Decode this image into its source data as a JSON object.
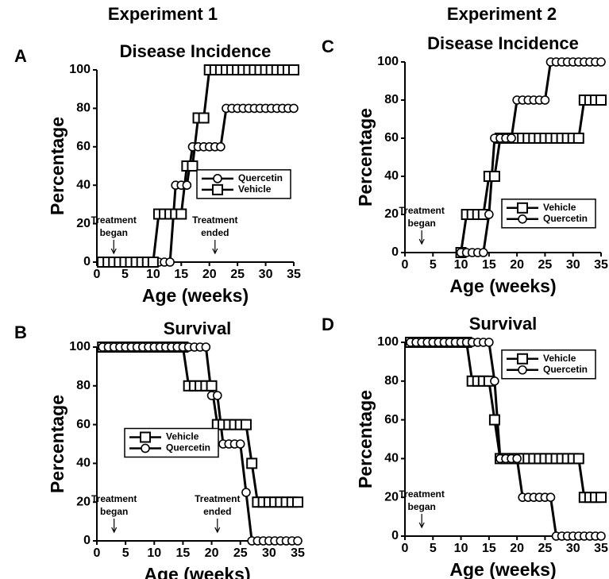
{
  "columns": [
    "Experiment 1",
    "Experiment 2"
  ],
  "chart_data": [
    {
      "type": "line",
      "panel": "A",
      "title": "Disease Incidence",
      "x_label": "Age (weeks)",
      "y_label": "Percentage",
      "x": [
        1,
        2,
        3,
        4,
        5,
        6,
        7,
        8,
        9,
        10,
        11,
        12,
        13,
        14,
        15,
        16,
        17,
        18,
        19,
        20,
        21,
        22,
        23,
        24,
        25,
        26,
        27,
        28,
        29,
        30,
        31,
        32,
        33,
        34,
        35
      ],
      "series": [
        {
          "name": "Quercetin",
          "marker": "circle",
          "color": "#000000",
          "values": [
            0,
            0,
            0,
            0,
            0,
            0,
            0,
            0,
            0,
            0,
            0,
            0,
            0,
            40,
            40,
            40,
            60,
            60,
            60,
            60,
            60,
            60,
            80,
            80,
            80,
            80,
            80,
            80,
            80,
            80,
            80,
            80,
            80,
            80,
            80
          ]
        },
        {
          "name": "Vehicle",
          "marker": "square",
          "color": "#000000",
          "values": [
            0,
            0,
            0,
            0,
            0,
            0,
            0,
            0,
            0,
            0,
            25,
            25,
            25,
            25,
            25,
            50,
            50,
            75,
            75,
            100,
            100,
            100,
            100,
            100,
            100,
            100,
            100,
            100,
            100,
            100,
            100,
            100,
            100,
            100,
            100
          ]
        }
      ],
      "xlim": [
        0,
        35
      ],
      "xticks": [
        0,
        5,
        10,
        15,
        20,
        25,
        30,
        35
      ],
      "ylim": [
        0,
        100
      ],
      "yticks": [
        0,
        20,
        40,
        60,
        80,
        100
      ],
      "legend": "center right",
      "annotations": [
        {
          "lines": [
            "Treatment",
            "began"
          ],
          "x": 3
        },
        {
          "lines": [
            "Treatment",
            "ended"
          ],
          "x": 21
        }
      ]
    },
    {
      "type": "line",
      "panel": "B",
      "title": "Survival",
      "x_label": "Age (weeks)",
      "y_label": "Percentage",
      "x": [
        1,
        2,
        3,
        4,
        5,
        6,
        7,
        8,
        9,
        10,
        11,
        12,
        13,
        14,
        15,
        16,
        17,
        18,
        19,
        20,
        21,
        22,
        23,
        24,
        25,
        26,
        27,
        28,
        29,
        30,
        31,
        32,
        33,
        34,
        35
      ],
      "series": [
        {
          "name": "Vehicle",
          "marker": "square",
          "color": "#000000",
          "values": [
            100,
            100,
            100,
            100,
            100,
            100,
            100,
            100,
            100,
            100,
            100,
            100,
            100,
            100,
            100,
            80,
            80,
            80,
            80,
            80,
            60,
            60,
            60,
            60,
            60,
            60,
            40,
            20,
            20,
            20,
            20,
            20,
            20,
            20,
            20
          ]
        },
        {
          "name": "Quercetin",
          "marker": "circle",
          "color": "#000000",
          "values": [
            100,
            100,
            100,
            100,
            100,
            100,
            100,
            100,
            100,
            100,
            100,
            100,
            100,
            100,
            100,
            100,
            100,
            100,
            100,
            75,
            75,
            50,
            50,
            50,
            50,
            25,
            0,
            0,
            0,
            0,
            0,
            0,
            0,
            0,
            0
          ]
        }
      ],
      "xlim": [
        0,
        35
      ],
      "xticks": [
        0,
        5,
        10,
        15,
        20,
        25,
        30,
        35
      ],
      "ylim": [
        0,
        100
      ],
      "yticks": [
        0,
        20,
        40,
        60,
        80,
        100
      ],
      "legend": "center left",
      "annotations": [
        {
          "lines": [
            "Treatment",
            "began"
          ],
          "x": 3
        },
        {
          "lines": [
            "Treatment",
            "ended"
          ],
          "x": 21
        }
      ]
    },
    {
      "type": "line",
      "panel": "C",
      "title": "Disease Incidence",
      "x_label": "Age (weeks)",
      "y_label": "Percentage",
      "x": [
        10,
        11,
        12,
        13,
        14,
        15,
        16,
        17,
        18,
        19,
        20,
        21,
        22,
        23,
        24,
        25,
        26,
        27,
        28,
        29,
        30,
        31,
        32,
        33,
        34,
        35
      ],
      "series": [
        {
          "name": "Vehicle",
          "marker": "square",
          "color": "#000000",
          "values": [
            0,
            20,
            20,
            20,
            20,
            40,
            40,
            60,
            60,
            60,
            60,
            60,
            60,
            60,
            60,
            60,
            60,
            60,
            60,
            60,
            60,
            60,
            80,
            80,
            80,
            80
          ]
        },
        {
          "name": "Quercetin",
          "marker": "circle",
          "color": "#000000",
          "values": [
            0,
            0,
            0,
            0,
            0,
            20,
            60,
            60,
            60,
            60,
            80,
            80,
            80,
            80,
            80,
            80,
            100,
            100,
            100,
            100,
            100,
            100,
            100,
            100,
            100,
            100
          ]
        }
      ],
      "xlim": [
        0,
        35
      ],
      "xticks": [
        0,
        5,
        10,
        15,
        20,
        25,
        30,
        35
      ],
      "ylim": [
        0,
        100
      ],
      "yticks": [
        0,
        20,
        40,
        60,
        80,
        100
      ],
      "legend": "lower right",
      "annotations": [
        {
          "lines": [
            "Treatment",
            "began"
          ],
          "x": 3
        }
      ]
    },
    {
      "type": "line",
      "panel": "D",
      "title": "Survival",
      "x_label": "Age (weeks)",
      "y_label": "Percentage",
      "x": [
        1,
        2,
        3,
        4,
        5,
        6,
        7,
        8,
        9,
        10,
        11,
        12,
        13,
        14,
        15,
        16,
        17,
        18,
        19,
        20,
        21,
        22,
        23,
        24,
        25,
        26,
        27,
        28,
        29,
        30,
        31,
        32,
        33,
        34,
        35
      ],
      "series": [
        {
          "name": "Vehicle",
          "marker": "square",
          "color": "#000000",
          "values": [
            100,
            100,
            100,
            100,
            100,
            100,
            100,
            100,
            100,
            100,
            100,
            80,
            80,
            80,
            80,
            60,
            40,
            40,
            40,
            40,
            40,
            40,
            40,
            40,
            40,
            40,
            40,
            40,
            40,
            40,
            40,
            20,
            20,
            20,
            20
          ]
        },
        {
          "name": "Quercetin",
          "marker": "circle",
          "color": "#000000",
          "values": [
            100,
            100,
            100,
            100,
            100,
            100,
            100,
            100,
            100,
            100,
            100,
            100,
            100,
            100,
            100,
            80,
            40,
            40,
            40,
            40,
            20,
            20,
            20,
            20,
            20,
            20,
            0,
            0,
            0,
            0,
            0,
            0,
            0,
            0,
            0
          ]
        }
      ],
      "xlim": [
        0,
        35
      ],
      "xticks": [
        0,
        5,
        10,
        15,
        20,
        25,
        30,
        35
      ],
      "ylim": [
        0,
        100
      ],
      "yticks": [
        0,
        20,
        40,
        60,
        80,
        100
      ],
      "legend": "upper right",
      "annotations": [
        {
          "lines": [
            "Treatment",
            "began"
          ],
          "x": 3
        }
      ]
    }
  ]
}
